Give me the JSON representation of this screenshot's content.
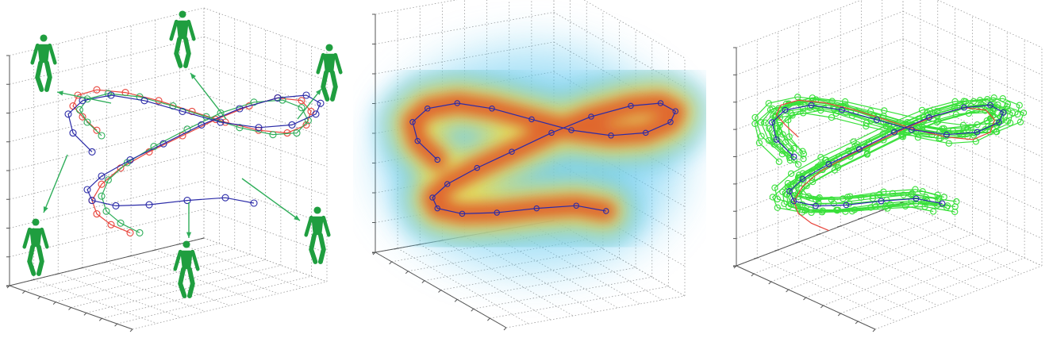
{
  "figure": {
    "panels": [
      "trajectories-with-poses",
      "density-volume",
      "sampled-trajectories"
    ]
  },
  "colors": {
    "red_trajectory": "#e8453c",
    "green_trajectory": "#2fae5a",
    "blue_trajectory": "#2b2ba8",
    "figure_green": "#1f9e3f",
    "sample_green": "#39e03a",
    "density_low": "#5fc8f0",
    "density_mid": "#f5e04a",
    "density_high": "#e0401c"
  },
  "icons": {
    "pose_figure": "stick-figure-icon",
    "arrow": "arrow-icon"
  },
  "chart_data": [
    {
      "type": "scatter",
      "title": "",
      "xlabel": "",
      "ylabel": "",
      "zlabel": "",
      "projection": "3d",
      "grid": true,
      "legend": "none",
      "series": [
        {
          "color": "#e8453c",
          "marker": "circle",
          "x": [
            -0.9,
            -1.05,
            -1.15,
            -1.1,
            -0.9,
            -0.6,
            -0.25,
            0.1,
            0.45,
            0.8,
            1.1,
            1.3,
            1.35,
            1.25,
            1.0,
            0.7,
            0.35,
            0.0,
            -0.35,
            -0.65,
            -0.85,
            -0.95,
            -0.9,
            -0.75,
            -0.55
          ],
          "y": [
            0.6,
            0.85,
            1.05,
            1.25,
            1.35,
            1.3,
            1.15,
            0.95,
            0.75,
            0.6,
            0.55,
            0.7,
            0.95,
            1.15,
            1.2,
            1.05,
            0.8,
            0.5,
            0.2,
            -0.1,
            -0.4,
            -0.7,
            -0.95,
            -1.15,
            -1.3
          ]
        },
        {
          "color": "#2fae5a",
          "marker": "circle",
          "x": [
            -0.85,
            -1.0,
            -1.08,
            -1.0,
            -0.78,
            -0.45,
            -0.1,
            0.25,
            0.6,
            0.95,
            1.2,
            1.32,
            1.25,
            1.05,
            0.75,
            0.4,
            0.05,
            -0.3,
            -0.58,
            -0.78,
            -0.85,
            -0.8,
            -0.65,
            -0.45
          ],
          "y": [
            0.5,
            0.75,
            0.98,
            1.18,
            1.28,
            1.22,
            1.05,
            0.85,
            0.65,
            0.52,
            0.55,
            0.78,
            1.02,
            1.16,
            1.12,
            0.92,
            0.62,
            0.3,
            0.0,
            -0.32,
            -0.62,
            -0.9,
            -1.12,
            -1.3
          ]
        },
        {
          "color": "#2b2ba8",
          "marker": "circle",
          "x": [
            -0.95,
            -1.15,
            -1.2,
            -1.05,
            -0.75,
            -0.4,
            0.0,
            0.4,
            0.8,
            1.15,
            1.4,
            1.45,
            1.3,
            1.0,
            0.6,
            0.2,
            -0.2,
            -0.55,
            -0.85,
            -1.0,
            -0.95,
            -0.7,
            -0.35,
            0.05,
            0.45,
            0.75
          ],
          "y": [
            0.2,
            0.55,
            0.9,
            1.15,
            1.25,
            1.15,
            0.95,
            0.75,
            0.65,
            0.7,
            0.9,
            1.1,
            1.25,
            1.2,
            1.0,
            0.7,
            0.35,
            0.05,
            -0.25,
            -0.5,
            -0.7,
            -0.8,
            -0.78,
            -0.7,
            -0.65,
            -0.75
          ]
        }
      ]
    },
    {
      "type": "heatmap",
      "title": "",
      "xlabel": "",
      "ylabel": "",
      "zlabel": "",
      "projection": "3d",
      "grid": true,
      "legend": "none",
      "series": [
        {
          "color": "#2b2ba8",
          "marker": "circle",
          "x": [
            -0.95,
            -1.15,
            -1.2,
            -1.05,
            -0.75,
            -0.4,
            0.0,
            0.4,
            0.8,
            1.15,
            1.4,
            1.45,
            1.3,
            1.0,
            0.6,
            0.2,
            -0.2,
            -0.55,
            -0.85,
            -1.0,
            -0.95,
            -0.7,
            -0.35,
            0.05,
            0.45,
            0.75
          ],
          "y": [
            0.2,
            0.55,
            0.9,
            1.15,
            1.25,
            1.15,
            0.95,
            0.75,
            0.65,
            0.7,
            0.9,
            1.1,
            1.25,
            1.2,
            1.0,
            0.7,
            0.35,
            0.05,
            -0.25,
            -0.5,
            -0.7,
            -0.8,
            -0.78,
            -0.7,
            -0.65,
            -0.75
          ]
        }
      ]
    },
    {
      "type": "scatter",
      "title": "",
      "xlabel": "",
      "ylabel": "",
      "zlabel": "",
      "projection": "3d",
      "grid": true,
      "legend": "none",
      "series": [
        {
          "color": "#2b2ba8",
          "marker": "circle",
          "x": [
            -0.95,
            -1.15,
            -1.2,
            -1.05,
            -0.75,
            -0.4,
            0.0,
            0.4,
            0.8,
            1.15,
            1.4,
            1.45,
            1.3,
            1.0,
            0.6,
            0.2,
            -0.2,
            -0.55,
            -0.85,
            -1.0,
            -0.95,
            -0.7,
            -0.35,
            0.05,
            0.45,
            0.75
          ],
          "y": [
            0.2,
            0.55,
            0.9,
            1.15,
            1.25,
            1.15,
            0.95,
            0.75,
            0.65,
            0.7,
            0.9,
            1.1,
            1.25,
            1.2,
            1.0,
            0.7,
            0.35,
            0.05,
            -0.25,
            -0.5,
            -0.7,
            -0.8,
            -0.78,
            -0.7,
            -0.65,
            -0.75
          ]
        },
        {
          "color": "#e8453c",
          "marker": "none",
          "x": [
            -0.9,
            -1.05,
            -1.15,
            -1.1,
            -0.9,
            -0.6,
            -0.25,
            0.1,
            0.45,
            0.8,
            1.1,
            1.3,
            1.35,
            1.25,
            1.0,
            0.7,
            0.35,
            0.0,
            -0.35,
            -0.65,
            -0.85,
            -0.95,
            -0.9,
            -0.75,
            -0.55
          ],
          "y": [
            0.6,
            0.85,
            1.05,
            1.25,
            1.35,
            1.3,
            1.15,
            0.95,
            0.75,
            0.6,
            0.55,
            0.7,
            0.95,
            1.15,
            1.2,
            1.05,
            0.8,
            0.5,
            0.2,
            -0.1,
            -0.4,
            -0.7,
            -0.95,
            -1.15,
            -1.3
          ]
        },
        {
          "color": "#39e03a",
          "marker": "circle",
          "samples": 12
        }
      ]
    }
  ]
}
